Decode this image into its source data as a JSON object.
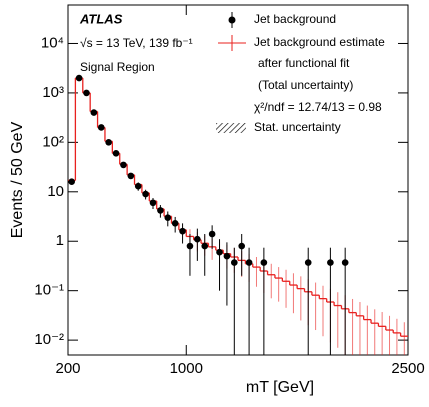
{
  "chart_data": {
    "type": "histogram-fit",
    "ylabel": "Events / 50 GeV",
    "xlabel": "mT [GeV]",
    "annotations": [
      "ATLAS",
      "√s = 13 TeV, 139 fb⁻¹",
      "Signal Region",
      "after functional fit",
      "(Total uncertainty)",
      "χ²/ndf = 12.74/13 = 0.98",
      "Stat. uncertainty"
    ],
    "xlim": [
      200,
      2500
    ],
    "xticks": [
      200,
      1000,
      2500
    ],
    "ylim": [
      0.005,
      60000
    ],
    "log_y": true,
    "yticks": [
      {
        "value": 0.01,
        "label": "10⁻²"
      },
      {
        "value": 0.1,
        "label": "10⁻¹"
      },
      1,
      10,
      {
        "value": 100,
        "label": "10²"
      },
      {
        "value": 1000,
        "label": "10³"
      },
      {
        "value": 10000,
        "label": "10⁴"
      }
    ],
    "x": [
      225,
      275,
      325,
      375,
      425,
      475,
      525,
      575,
      625,
      675,
      725,
      775,
      825,
      875,
      925,
      975,
      1025,
      1075,
      1125,
      1175,
      1225,
      1275,
      1325,
      1375,
      1425,
      1475,
      1525,
      1575,
      1625,
      1675,
      1725,
      1775,
      1825,
      1875,
      1925,
      1975,
      2025,
      2075,
      2125,
      2175,
      2225,
      2275,
      2325,
      2375,
      2425,
      2475
    ],
    "series": [
      {
        "name": "Jet background",
        "color": "#000000",
        "values": [
          16,
          2000,
          1000,
          400,
          200,
          100,
          60,
          35,
          21,
          13,
          9,
          6,
          4.2,
          3,
          2.3,
          1.6,
          0.8,
          1.1,
          0.8,
          1.4,
          0.6,
          0.5,
          0.37,
          0.8,
          0.37,
          null,
          0.37,
          null,
          null,
          null,
          null,
          null,
          0.37,
          null,
          null,
          0.37,
          null,
          0.37,
          null,
          null,
          null,
          null,
          null,
          null,
          null,
          null
        ],
        "errors": [
          2,
          60,
          40,
          20,
          12,
          8,
          6,
          4,
          3,
          2.5,
          2,
          1.5,
          1.2,
          1,
          0.8,
          0.7,
          0.6,
          0.7,
          0.6,
          0.7,
          0.5,
          0.45,
          0.37,
          0.6,
          0.37,
          null,
          0.37,
          null,
          null,
          null,
          null,
          null,
          0.37,
          null,
          null,
          0.37,
          null,
          0.37,
          null,
          null,
          null,
          null,
          null,
          null,
          null,
          null
        ]
      },
      {
        "name": "Jet background estimate",
        "color": "#e8201e",
        "values": [
          17,
          2000,
          1000,
          420,
          200,
          105,
          60,
          36,
          22,
          14,
          9.5,
          6.5,
          4.5,
          3.2,
          2.3,
          1.7,
          1.25,
          1.07,
          0.91,
          0.77,
          0.66,
          0.56,
          0.48,
          0.41,
          0.35,
          0.3,
          0.25,
          0.21,
          0.18,
          0.155,
          0.13,
          0.11,
          0.095,
          0.081,
          0.069,
          0.059,
          0.05,
          0.043,
          0.036,
          0.031,
          0.026,
          0.022,
          0.019,
          0.016,
          0.014,
          0.012
        ],
        "errors": [
          1,
          60,
          30,
          15,
          8,
          5,
          3,
          2,
          1.3,
          0.9,
          0.7,
          0.5,
          0.4,
          0.3,
          0.25,
          0.2,
          0.5,
          0.45,
          0.4,
          0.35,
          0.32,
          0.28,
          0.25,
          0.22,
          0.2,
          0.18,
          0.16,
          0.14,
          0.12,
          0.11,
          0.095,
          0.085,
          0.075,
          0.065,
          0.057,
          0.05,
          0.043,
          0.038,
          0.032,
          0.028,
          0.024,
          0.02,
          0.018,
          0.015,
          0.013,
          0.011
        ]
      }
    ]
  }
}
